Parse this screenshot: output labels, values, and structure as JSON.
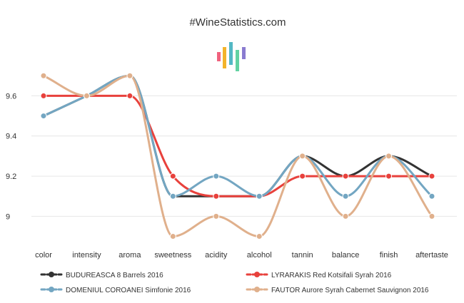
{
  "chart_data": {
    "type": "line",
    "title": "#WineStatistics.com",
    "categories": [
      "color",
      "intensity",
      "aroma",
      "sweetness",
      "acidity",
      "alcohol",
      "tannin",
      "balance",
      "finish",
      "aftertaste"
    ],
    "y_ticks": [
      "9",
      "9.2",
      "9.4",
      "9.6"
    ],
    "ylim": [
      8.87,
      9.74
    ],
    "xlabel": "",
    "ylabel": "",
    "series": [
      {
        "name": "BUDUREASCA 8 Barrels 2016",
        "color": "#333333",
        "values": [
          9.5,
          9.6,
          9.7,
          9.1,
          9.1,
          9.1,
          9.3,
          9.2,
          9.3,
          9.2
        ]
      },
      {
        "name": "LYRARAKIS Red Kotsifali Syrah 2016",
        "color": "#e8413c",
        "values": [
          9.6,
          9.6,
          9.6,
          9.2,
          9.1,
          9.1,
          9.2,
          9.2,
          9.2,
          9.2
        ]
      },
      {
        "name": "DOMENIUL COROANEI Simfonie 2016",
        "color": "#73a6c2",
        "values": [
          9.5,
          9.6,
          9.7,
          9.1,
          9.2,
          9.1,
          9.3,
          9.1,
          9.3,
          9.1
        ]
      },
      {
        "name": "FAUTOR Aurore Syrah Cabernet Sauvignon 2016",
        "color": "#e0b08c",
        "values": [
          9.7,
          9.6,
          9.7,
          8.9,
          9.0,
          8.9,
          9.3,
          9.0,
          9.3,
          9.0
        ]
      }
    ],
    "legend_position": "bottom"
  },
  "logo": {
    "name": "winestatistics-logo-icon",
    "colors": [
      "#f0627e",
      "#f3b32a",
      "#53b8c4",
      "#62d2a2",
      "#8a7bd0"
    ]
  }
}
